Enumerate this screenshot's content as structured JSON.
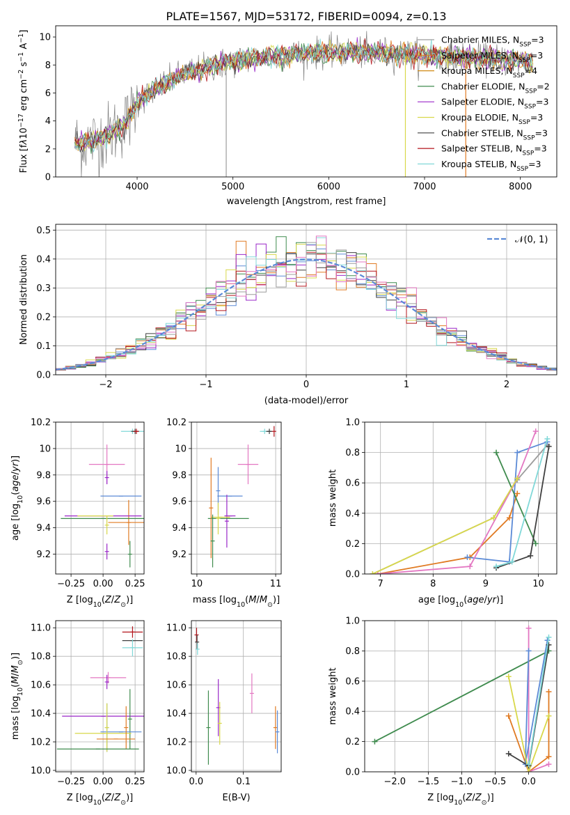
{
  "figure_title": "PLATE=1567, MJD=53172, FIBERID=0094, z=0.13",
  "legend_entries": [
    {
      "name": "Chabrier MILES",
      "label": "Chabrier MILES, N",
      "nssp": "=3",
      "color": "#9c9c9c"
    },
    {
      "name": "Salpeter MILES",
      "label": "Salpeter MILES, N",
      "nssp": "=3",
      "color": "#e07a22"
    },
    {
      "name": "Kroupa MILES",
      "label": "Kroupa MILES, N",
      "nssp": "=4",
      "color": "#d08a14"
    },
    {
      "name": "Chabrier ELODIE",
      "label": "Chabrier ELODIE, N",
      "nssp": "=2",
      "color": "#3f8b4e"
    },
    {
      "name": "Salpeter ELODIE",
      "label": "Salpeter ELODIE, N",
      "nssp": "=3",
      "color": "#9a27c8"
    },
    {
      "name": "Kroupa ELODIE",
      "label": "Kroupa ELODIE, N",
      "nssp": "=3",
      "color": "#d8d84a"
    },
    {
      "name": "Chabrier STELIB",
      "label": "Chabrier STELIB, N",
      "nssp": "=3",
      "color": "#3f3f3f"
    },
    {
      "name": "Salpeter STELIB",
      "label": "Salpeter STELIB, N",
      "nssp": "=3",
      "color": "#b3141b"
    },
    {
      "name": "Kroupa STELIB",
      "label": "Kroupa STELIB, N",
      "nssp": "=3",
      "color": "#80d8d8"
    }
  ],
  "nssp_subscript": "SSP",
  "chart_data": [
    {
      "id": "spectrum",
      "type": "line",
      "xlabel": "wavelength [Angstrom, rest frame]",
      "ylabel": "Flux [fλ10^-17 erg cm^-2 s^-1 A^-1]",
      "xlim": [
        3150,
        8380
      ],
      "ylim": [
        0,
        10.8
      ],
      "xticks": [
        4000,
        5000,
        6000,
        7000,
        8000
      ],
      "yticks": [
        0,
        2,
        4,
        6,
        8,
        10
      ],
      "grid": false,
      "legend": "upper right",
      "data_x_range": [
        3350,
        8130
      ],
      "continuum_x": [
        3350,
        3500,
        3700,
        3900,
        4000,
        4200,
        4500,
        5000,
        5500,
        6000,
        6500,
        7000,
        7500,
        8000,
        8130
      ],
      "continuum_y": [
        2.4,
        2.5,
        3.0,
        4.0,
        5.3,
        6.3,
        7.4,
        8.3,
        8.7,
        8.9,
        8.9,
        8.7,
        8.5,
        8.3,
        8.2
      ]
    },
    {
      "id": "residuals",
      "type": "line",
      "xlabel": "(data-model)/error",
      "ylabel": "Normed distribution",
      "xlim": [
        -2.5,
        2.5
      ],
      "ylim": [
        0,
        0.52
      ],
      "xticks": [
        -2,
        -1,
        0,
        1,
        2
      ],
      "xticklabels": [
        "−2",
        "−1",
        "0",
        "1",
        "2"
      ],
      "yticks": [
        0.0,
        0.1,
        0.2,
        0.3,
        0.4,
        0.5
      ],
      "yticklabels": [
        "0.0",
        "0.1",
        "0.2",
        "0.3",
        "0.4",
        "0.5"
      ],
      "grid": true,
      "legend": "upper right",
      "reference_label": "𝒩(0, 1)",
      "reference_color": "#5b8ad6",
      "bin_width": 0.1
    },
    {
      "id": "age_vs_Z",
      "type": "scatter",
      "xlabel": "Z [log10(Z/Z⊙)]",
      "ylabel": "age [log10(age/yr)]",
      "xlim": [
        -0.37,
        0.32
      ],
      "ylim": [
        9.05,
        10.2
      ],
      "xticks": [
        -0.25,
        0.0,
        0.25
      ],
      "xticklabels": [
        "−0.25",
        "0.00",
        "0.25"
      ],
      "yticks": [
        9.2,
        9.4,
        9.6,
        9.8,
        10.0,
        10.2
      ],
      "grid": true,
      "points": [
        {
          "x": 0.23,
          "y": 10.13,
          "xerr": 0.09,
          "yerr": 0.02,
          "color": "#80d8d8"
        },
        {
          "x": 0.25,
          "y": 10.13,
          "xerr": 0.03,
          "yerr": 0.02,
          "color": "#3f3f3f"
        },
        {
          "x": 0.26,
          "y": 10.13,
          "xerr": 0.02,
          "yerr": 0.02,
          "color": "#b3141b"
        },
        {
          "x": 0.03,
          "y": 9.88,
          "xerr": 0.14,
          "yerr": 0.15,
          "color": "#e377c2"
        },
        {
          "x": 0.03,
          "y": 9.78,
          "xerr": 0.0,
          "yerr": 0.05,
          "color": "#9a27c8"
        },
        {
          "x": 0.14,
          "y": 9.64,
          "xerr": 0.16,
          "yerr": 0.0,
          "color": "#5b8ad6"
        },
        {
          "x": 0.2,
          "y": 9.44,
          "xerr": 0.16,
          "yerr": 0.17,
          "color": "#e07a22"
        },
        {
          "x": 0.21,
          "y": 9.2,
          "xerr": 0.0,
          "yerr": 0.1,
          "color": "#3f8b4e"
        },
        {
          "x": 0.0,
          "y": 9.47,
          "xerr": 0.33,
          "yerr": 0.0,
          "color": "#3f8b4e"
        },
        {
          "x": 0.0,
          "y": 9.49,
          "xerr": 0.3,
          "yerr": 0.0,
          "color": "#9a27c8"
        },
        {
          "x": 0.03,
          "y": 9.42,
          "xerr": 0.0,
          "yerr": 0.07,
          "color": "#d8d84a"
        },
        {
          "x": 0.03,
          "y": 9.22,
          "xerr": 0.0,
          "yerr": 0.06,
          "color": "#9a27c8"
        },
        {
          "x": -0.06,
          "y": 9.49,
          "xerr": 0.14,
          "yerr": 0.0,
          "color": "#d8d84a"
        }
      ]
    },
    {
      "id": "age_vs_mass",
      "type": "scatter",
      "xlabel": "mass [log10(M/M⊙)]",
      "ylabel": "",
      "xlim": [
        9.93,
        11.07
      ],
      "ylim": [
        9.05,
        10.2
      ],
      "xticks": [
        10,
        11
      ],
      "xticklabels": [
        "10",
        "11"
      ],
      "yticks": [
        9.2,
        9.4,
        9.6,
        9.8,
        10.0,
        10.2
      ],
      "grid": true,
      "points": [
        {
          "x": 10.86,
          "y": 10.13,
          "xerr": 0.06,
          "yerr": 0.02,
          "color": "#80d8d8"
        },
        {
          "x": 10.92,
          "y": 10.13,
          "xerr": 0.04,
          "yerr": 0.02,
          "color": "#3f3f3f"
        },
        {
          "x": 10.98,
          "y": 10.13,
          "xerr": 0.0,
          "yerr": 0.04,
          "color": "#b3141b"
        },
        {
          "x": 10.65,
          "y": 9.88,
          "xerr": 0.13,
          "yerr": 0.15,
          "color": "#e377c2"
        },
        {
          "x": 10.42,
          "y": 9.64,
          "xerr": 0.16,
          "yerr": 0.0,
          "color": "#5b8ad6"
        },
        {
          "x": 10.27,
          "y": 9.68,
          "xerr": 0.0,
          "yerr": 0.18,
          "color": "#5b8ad6"
        },
        {
          "x": 10.38,
          "y": 9.45,
          "xerr": 0.0,
          "yerr": 0.2,
          "color": "#9a27c8"
        },
        {
          "x": 10.3,
          "y": 9.48,
          "xerr": 0.12,
          "yerr": 0.0,
          "color": "#d8d84a"
        },
        {
          "x": 10.4,
          "y": 9.47,
          "xerr": 0.26,
          "yerr": 0.0,
          "color": "#3f8b4e"
        },
        {
          "x": 10.18,
          "y": 9.55,
          "xerr": 0.0,
          "yerr": 0.38,
          "color": "#e07a22"
        },
        {
          "x": 10.2,
          "y": 9.3,
          "xerr": 0.0,
          "yerr": 0.2,
          "color": "#3f8b4e"
        },
        {
          "x": 10.27,
          "y": 9.47,
          "xerr": 0.0,
          "yerr": 0.12,
          "color": "#d8d84a"
        },
        {
          "x": 10.42,
          "y": 9.49,
          "xerr": 0.07,
          "yerr": 0.0,
          "color": "#9a27c8"
        }
      ]
    },
    {
      "id": "weight_vs_age",
      "type": "line",
      "xlabel": "age [log10(age/yr)]",
      "ylabel": "mass weight",
      "xlim": [
        6.7,
        10.35
      ],
      "ylim": [
        0.0,
        1.0
      ],
      "xticks": [
        7,
        8,
        9,
        10
      ],
      "xticklabels": [
        "7",
        "8",
        "9",
        "10"
      ],
      "yticks": [
        0.0,
        0.2,
        0.4,
        0.6,
        0.8,
        1.0
      ],
      "yticklabels": [
        "0.0",
        "0.2",
        "0.4",
        "0.6",
        "0.8",
        "1.0"
      ],
      "grid": true,
      "series": [
        {
          "color": "#9c9c9c",
          "x": [
            6.85,
            9.15,
            9.6,
            10.17
          ],
          "y": [
            0.0,
            0.37,
            0.62,
            0.85
          ]
        },
        {
          "color": "#e07a22",
          "x": [
            6.95,
            8.7,
            9.45,
            9.6
          ],
          "y": [
            0.0,
            0.11,
            0.37,
            0.53
          ]
        },
        {
          "color": "#5b8ad6",
          "x": [
            8.65,
            9.45,
            9.6,
            10.17
          ],
          "y": [
            0.11,
            0.08,
            0.8,
            0.87
          ]
        },
        {
          "color": "#3f8b4e",
          "x": [
            9.2,
            9.95
          ],
          "y": [
            0.8,
            0.2
          ]
        },
        {
          "color": "#e377c2",
          "x": [
            6.95,
            8.7,
            9.6,
            9.95
          ],
          "y": [
            0.0,
            0.05,
            0.63,
            0.94
          ]
        },
        {
          "color": "#d8d84a",
          "x": [
            6.85,
            9.15,
            9.6
          ],
          "y": [
            0.0,
            0.37,
            0.63
          ]
        },
        {
          "color": "#3f3f3f",
          "x": [
            9.2,
            9.85,
            10.2
          ],
          "y": [
            0.04,
            0.12,
            0.84
          ]
        },
        {
          "color": "#80d8d8",
          "x": [
            9.2,
            9.5,
            10.17
          ],
          "y": [
            0.05,
            0.08,
            0.89
          ]
        }
      ]
    },
    {
      "id": "mass_vs_Z",
      "type": "scatter",
      "xlabel": "Z [log10(Z/Z⊙)]",
      "ylabel": "mass [log10(M/M⊙)]",
      "xlim": [
        -0.37,
        0.32
      ],
      "ylim": [
        9.99,
        11.05
      ],
      "xticks": [
        -0.25,
        0.0,
        0.25
      ],
      "xticklabels": [
        "−0.25",
        "0.00",
        "0.25"
      ],
      "yticks": [
        10.0,
        10.2,
        10.4,
        10.6,
        10.8,
        11.0
      ],
      "yticklabels": [
        "10.0",
        "10.2",
        "10.4",
        "10.6",
        "10.8",
        "11.0"
      ],
      "grid": true,
      "points": [
        {
          "x": 0.23,
          "y": 10.97,
          "xerr": 0.08,
          "yerr": 0.04,
          "color": "#b3141b"
        },
        {
          "x": 0.23,
          "y": 10.91,
          "xerr": 0.08,
          "yerr": 0.0,
          "color": "#3f3f3f"
        },
        {
          "x": 0.23,
          "y": 10.86,
          "xerr": 0.08,
          "yerr": 0.06,
          "color": "#80d8d8"
        },
        {
          "x": 0.04,
          "y": 10.65,
          "xerr": 0.14,
          "yerr": 0.04,
          "color": "#e377c2"
        },
        {
          "x": 0.03,
          "y": 10.62,
          "xerr": 0.0,
          "yerr": 0.05,
          "color": "#9a27c8"
        },
        {
          "x": 0.0,
          "y": 10.38,
          "xerr": 0.32,
          "yerr": 0.0,
          "color": "#9a27c8"
        },
        {
          "x": 0.21,
          "y": 10.36,
          "xerr": 0.0,
          "yerr": 0.21,
          "color": "#3f8b4e"
        },
        {
          "x": 0.14,
          "y": 10.27,
          "xerr": 0.16,
          "yerr": 0.0,
          "color": "#5b8ad6"
        },
        {
          "x": 0.03,
          "y": 10.3,
          "xerr": 0.0,
          "yerr": 0.17,
          "color": "#5b8ad6"
        },
        {
          "x": 0.0,
          "y": 10.26,
          "xerr": 0.22,
          "yerr": 0.0,
          "color": "#d8d84a"
        },
        {
          "x": 0.03,
          "y": 10.3,
          "xerr": 0.0,
          "yerr": 0.17,
          "color": "#d8d84a"
        },
        {
          "x": 0.1,
          "y": 10.22,
          "xerr": 0.15,
          "yerr": 0.0,
          "color": "#e07a22"
        },
        {
          "x": 0.18,
          "y": 10.3,
          "xerr": 0.0,
          "yerr": 0.15,
          "color": "#e07a22"
        },
        {
          "x": -0.04,
          "y": 10.15,
          "xerr": 0.32,
          "yerr": 0.0,
          "color": "#3f8b4e"
        }
      ]
    },
    {
      "id": "mass_vs_ebv",
      "type": "scatter",
      "xlabel": "E(B-V)",
      "ylabel": "",
      "xlim": [
        -0.01,
        0.18
      ],
      "ylim": [
        9.99,
        11.05
      ],
      "xticks": [
        0.0,
        0.1
      ],
      "xticklabels": [
        "0.0",
        "0.1"
      ],
      "yticks": [
        10.0,
        10.2,
        10.4,
        10.6,
        10.8,
        11.0
      ],
      "yticklabels": [
        "10.0",
        "10.2",
        "10.4",
        "10.6",
        "10.8",
        "11.0"
      ],
      "grid": true,
      "points": [
        {
          "x": 0.001,
          "y": 10.95,
          "xerr": 0.0,
          "yerr": 0.05,
          "color": "#b3141b"
        },
        {
          "x": 0.002,
          "y": 10.9,
          "xerr": 0.0,
          "yerr": 0.05,
          "color": "#3f3f3f"
        },
        {
          "x": 0.003,
          "y": 10.85,
          "xerr": 0.0,
          "yerr": 0.04,
          "color": "#80d8d8"
        },
        {
          "x": 0.026,
          "y": 10.3,
          "xerr": 0.0,
          "yerr": 0.26,
          "color": "#3f8b4e"
        },
        {
          "x": 0.047,
          "y": 10.44,
          "xerr": 0.0,
          "yerr": 0.2,
          "color": "#9a27c8"
        },
        {
          "x": 0.05,
          "y": 10.33,
          "xerr": 0.0,
          "yerr": 0.15,
          "color": "#d8d84a"
        },
        {
          "x": 0.118,
          "y": 10.54,
          "xerr": 0.0,
          "yerr": 0.14,
          "color": "#e377c2"
        },
        {
          "x": 0.168,
          "y": 10.3,
          "xerr": 0.0,
          "yerr": 0.15,
          "color": "#e07a22"
        },
        {
          "x": 0.172,
          "y": 10.27,
          "xerr": 0.0,
          "yerr": 0.15,
          "color": "#5b8ad6"
        }
      ]
    },
    {
      "id": "weight_vs_Z",
      "type": "line",
      "xlabel": "Z [log10(Z/Z⊙)]",
      "ylabel": "mass weight",
      "xlim": [
        -2.45,
        0.42
      ],
      "ylim": [
        0.0,
        1.0
      ],
      "xticks": [
        -2.0,
        -1.5,
        -1.0,
        -0.5,
        0.0
      ],
      "xticklabels": [
        "−2.0",
        "−1.5",
        "−1.0",
        "−0.5",
        "0.0"
      ],
      "yticks": [
        0.0,
        0.2,
        0.4,
        0.6,
        0.8,
        1.0
      ],
      "yticklabels": [
        "0.0",
        "0.2",
        "0.4",
        "0.6",
        "0.8",
        "1.0"
      ],
      "grid": true,
      "series": [
        {
          "color": "#3f8b4e",
          "x": [
            -2.3,
            0.3
          ],
          "y": [
            0.2,
            0.8
          ]
        },
        {
          "color": "#e07a22",
          "x": [
            -0.3,
            0.0,
            0.3,
            0.3
          ],
          "y": [
            0.37,
            0.0,
            0.1,
            0.53
          ]
        },
        {
          "color": "#e377c2",
          "x": [
            0.0,
            0.0,
            0.3
          ],
          "y": [
            0.95,
            0.0,
            0.05
          ]
        },
        {
          "color": "#5b8ad6",
          "x": [
            0.0,
            -0.05,
            0.28
          ],
          "y": [
            0.8,
            0.05,
            0.87
          ]
        },
        {
          "color": "#d8d84a",
          "x": [
            -0.3,
            0.0,
            0.3
          ],
          "y": [
            0.63,
            0.0,
            0.37
          ]
        },
        {
          "color": "#3f3f3f",
          "x": [
            -0.3,
            0.0,
            0.3
          ],
          "y": [
            0.12,
            0.04,
            0.84
          ]
        },
        {
          "color": "#80d8d8",
          "x": [
            0.0,
            0.3
          ],
          "y": [
            0.05,
            0.89
          ]
        }
      ]
    }
  ]
}
